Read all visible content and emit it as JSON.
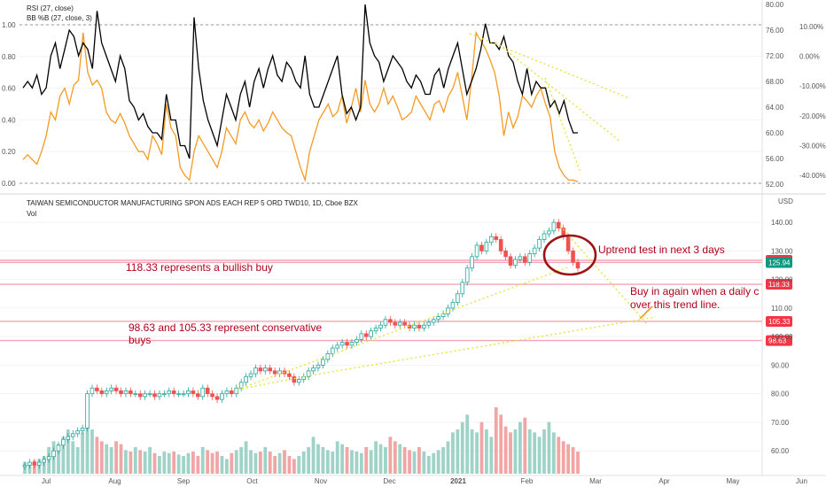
{
  "chart_data": [
    {
      "type": "line",
      "panel": "oscillators",
      "legend": [
        "RSI (27, close)",
        "BB %B (27, close, 3)"
      ],
      "y_left_ticks": [
        "1.00",
        "0.80",
        "0.60",
        "0.40",
        "0.20",
        "0.00"
      ],
      "y_mid_ticks": [
        "80.00",
        "76.00",
        "72.00",
        "68.00",
        "64.00",
        "60.00",
        "56.00",
        "52.00"
      ],
      "y_right_ticks": [
        "10.00%",
        "0.00%",
        "-10.00%",
        "-20.00%",
        "-30.00%",
        "-40.00%"
      ],
      "rsi_range": [
        52,
        80
      ],
      "series": [
        {
          "name": "RSI (27, close)",
          "color": "#000000",
          "values": [
            67,
            68,
            67,
            69,
            66,
            67,
            72,
            74,
            70,
            73,
            76,
            75,
            72,
            74,
            73,
            70,
            79,
            74,
            72,
            70,
            68,
            72,
            70,
            65,
            64,
            62,
            63,
            61,
            60,
            60,
            59,
            66,
            62,
            62,
            58,
            58,
            56,
            78,
            70,
            65,
            62,
            60,
            58,
            62,
            66,
            64,
            62,
            66,
            68,
            64,
            68,
            70,
            67,
            70,
            72,
            69,
            68,
            71,
            70,
            68,
            67,
            72,
            66,
            64,
            64,
            66,
            68,
            70,
            72,
            66,
            63,
            64,
            62,
            64,
            80,
            74,
            72,
            71,
            68,
            70,
            72,
            71,
            70,
            68,
            67,
            69,
            68,
            66,
            66,
            69,
            70,
            67,
            70,
            72,
            74,
            70,
            66,
            68,
            70,
            73,
            77,
            74,
            74,
            73,
            75,
            72,
            71,
            68,
            66,
            70,
            66,
            68,
            67,
            67,
            64,
            65,
            63,
            65,
            62,
            60,
            60
          ]
        },
        {
          "name": "BB %B (27, close, 3)",
          "color": "#f59a23",
          "values": [
            0.15,
            0.18,
            0.15,
            0.12,
            0.2,
            0.3,
            0.45,
            0.4,
            0.55,
            0.6,
            0.5,
            0.62,
            0.65,
            0.95,
            0.7,
            0.62,
            0.65,
            0.6,
            0.45,
            0.4,
            0.38,
            0.44,
            0.38,
            0.3,
            0.25,
            0.2,
            0.2,
            0.15,
            0.3,
            0.25,
            0.18,
            0.5,
            0.35,
            0.3,
            0.1,
            0.05,
            0.02,
            0.2,
            0.3,
            0.25,
            0.2,
            0.15,
            0.1,
            0.2,
            0.35,
            0.3,
            0.25,
            0.4,
            0.45,
            0.38,
            0.35,
            0.4,
            0.33,
            0.38,
            0.45,
            0.4,
            0.35,
            0.32,
            0.3,
            0.2,
            0.1,
            0.02,
            0.2,
            0.3,
            0.4,
            0.45,
            0.5,
            0.42,
            0.45,
            0.55,
            0.38,
            0.48,
            0.6,
            0.45,
            0.65,
            0.5,
            0.45,
            0.5,
            0.6,
            0.5,
            0.55,
            0.48,
            0.4,
            0.42,
            0.45,
            0.55,
            0.5,
            0.45,
            0.4,
            0.5,
            0.52,
            0.45,
            0.55,
            0.6,
            0.7,
            0.55,
            0.4,
            0.65,
            0.95,
            0.9,
            0.85,
            0.78,
            0.7,
            0.55,
            0.3,
            0.45,
            0.35,
            0.42,
            0.55,
            0.52,
            0.48,
            0.55,
            0.6,
            0.5,
            0.42,
            0.2,
            0.1,
            0.05,
            0.02,
            0.02,
            0.01
          ]
        }
      ]
    },
    {
      "type": "candlestick",
      "panel": "price",
      "title": "TAIWAN SEMICONDUCTOR MANUFACTURING SPON ADS EACH REP 5 ORD TWD10, 1D, Cboe BZX",
      "volume_label": "Vol",
      "currency": "USD",
      "y_range": [
        52,
        145
      ],
      "y_ticks": [
        "140.00",
        "130.00",
        "120.00",
        "110.00",
        "100.00",
        "90.00",
        "80.00",
        "70.00",
        "60.00"
      ],
      "x_labels": [
        "Jul",
        "Aug",
        "Sep",
        "Oct",
        "Nov",
        "Dec",
        "2021",
        "Feb",
        "Mar",
        "Apr",
        "May",
        "Jun"
      ],
      "close": [
        55,
        56,
        55,
        56,
        57,
        58,
        60,
        62,
        64,
        65,
        66,
        67,
        68,
        80,
        82,
        81,
        80,
        81,
        82,
        81,
        80,
        81,
        80,
        80,
        79,
        80,
        80,
        79,
        80,
        80,
        81,
        80,
        80,
        80,
        81,
        80,
        79,
        82,
        80,
        79,
        78,
        80,
        81,
        80,
        82,
        84,
        86,
        87,
        89,
        88,
        89,
        88,
        87,
        88,
        87,
        86,
        84,
        85,
        86,
        88,
        89,
        90,
        92,
        94,
        96,
        97,
        98,
        97,
        98,
        99,
        101,
        100,
        102,
        103,
        104,
        106,
        105,
        104,
        105,
        104,
        103,
        104,
        103,
        104,
        105,
        106,
        107,
        108,
        110,
        112,
        115,
        119,
        124,
        128,
        132,
        130,
        133,
        135,
        134,
        130,
        128,
        125,
        127,
        128,
        126,
        129,
        131,
        134,
        136,
        137,
        140,
        138,
        135,
        130,
        126,
        124
      ],
      "volume": [
        8,
        7,
        9,
        10,
        12,
        18,
        22,
        20,
        25,
        30,
        22,
        18,
        28,
        35,
        30,
        25,
        22,
        20,
        18,
        22,
        20,
        16,
        15,
        18,
        16,
        15,
        18,
        14,
        12,
        15,
        14,
        15,
        13,
        12,
        14,
        15,
        12,
        18,
        16,
        14,
        15,
        12,
        10,
        14,
        16,
        18,
        22,
        16,
        14,
        15,
        18,
        15,
        12,
        14,
        16,
        12,
        10,
        12,
        15,
        18,
        25,
        20,
        18,
        16,
        15,
        22,
        20,
        18,
        16,
        15,
        14,
        18,
        16,
        22,
        20,
        18,
        25,
        22,
        20,
        18,
        16,
        15,
        18,
        15,
        12,
        14,
        16,
        18,
        22,
        28,
        30,
        35,
        40,
        30,
        28,
        35,
        30,
        25,
        45,
        40,
        32,
        28,
        30,
        35,
        38,
        30,
        28,
        25,
        30,
        35,
        28,
        25,
        22,
        20,
        18,
        15
      ],
      "price_levels": [
        {
          "label": "126.71",
          "value": 126.71,
          "color": "#f23645"
        },
        {
          "label": "125.94",
          "value": 125.94,
          "color": "#089981"
        },
        {
          "label": "118.33",
          "value": 118.33,
          "color": "#f23645"
        },
        {
          "label": "105.33",
          "value": 105.33,
          "color": "#f23645"
        },
        {
          "label": "98.63",
          "value": 98.63,
          "color": "#f23645"
        }
      ],
      "annotations": [
        {
          "text": "Uptrend test in next 3 days"
        },
        {
          "text": "118.33 represents a bullish buy"
        },
        {
          "text": "Buy in again when a daily c"
        },
        {
          "text": "over this trend line."
        },
        {
          "text": "98.63 and 105.33 represent conservative"
        },
        {
          "text": "buys"
        }
      ]
    }
  ]
}
